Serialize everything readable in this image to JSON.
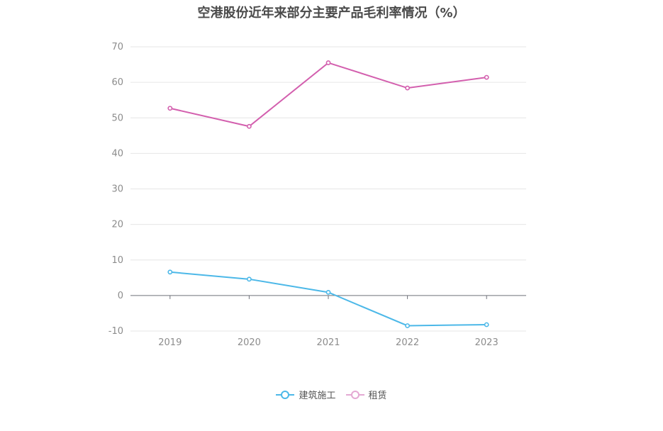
{
  "chart_data": {
    "type": "line",
    "title": "空港股份近年来部分主要产品毛利率情况（%）",
    "categories": [
      "2019",
      "2020",
      "2021",
      "2022",
      "2023"
    ],
    "ylim": [
      -10,
      70
    ],
    "yticks": [
      "70",
      "60",
      "50",
      "40",
      "30",
      "20",
      "10",
      "0",
      "-10"
    ],
    "grid": true,
    "legend_position": "bottom-center",
    "series": [
      {
        "name": "建筑施工",
        "color": "#4cb8e8",
        "values": [
          6.6,
          4.6,
          0.9,
          -8.5,
          -8.2
        ]
      },
      {
        "name": "租赁",
        "color": "#d35fae",
        "values": [
          52.7,
          47.6,
          65.5,
          58.4,
          61.4
        ]
      }
    ]
  }
}
